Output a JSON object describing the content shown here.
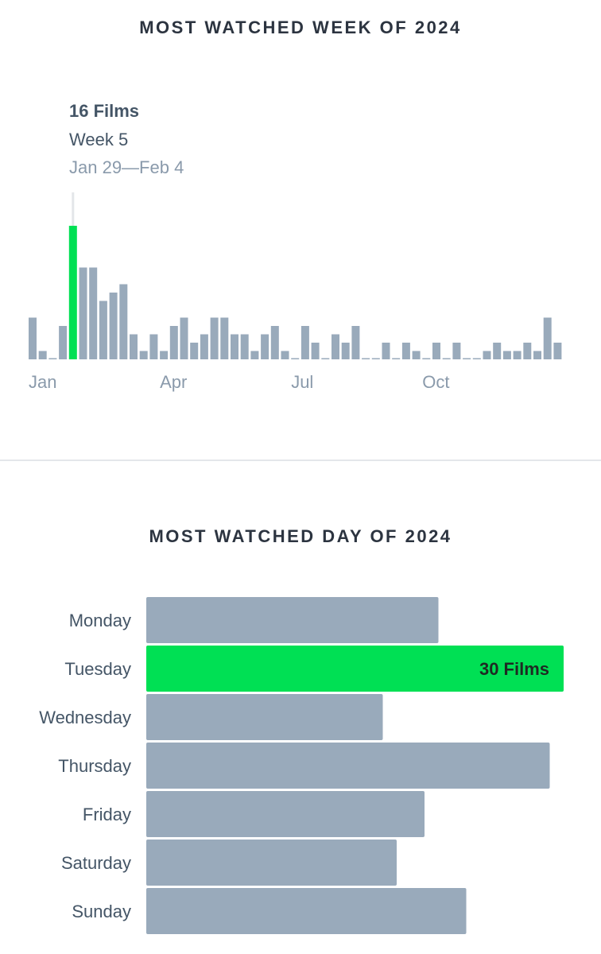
{
  "colors": {
    "bar": "#99aabb",
    "highlight": "#00e054",
    "title": "#2c3440",
    "label": "#445566",
    "muted": "#8a9aab"
  },
  "week_section": {
    "title": "MOST WATCHED WEEK OF 2024",
    "tooltip": {
      "count": "16 Films",
      "week": "Week 5",
      "range": "Jan 29—Feb 4"
    }
  },
  "day_section": {
    "title": "MOST WATCHED DAY OF 2024",
    "highlight_label": "30 Films"
  },
  "chart_data": [
    {
      "type": "bar",
      "title": "MOST WATCHED WEEK OF 2024",
      "x": [
        1,
        2,
        3,
        4,
        5,
        6,
        7,
        8,
        9,
        10,
        11,
        12,
        13,
        14,
        15,
        16,
        17,
        18,
        19,
        20,
        21,
        22,
        23,
        24,
        25,
        26,
        27,
        28,
        29,
        30,
        31,
        32,
        33,
        34,
        35,
        36,
        37,
        38,
        39,
        40,
        41,
        42,
        43,
        44,
        45,
        46,
        47,
        48,
        49,
        50,
        51,
        52,
        53
      ],
      "values": [
        5,
        1,
        0,
        4,
        16,
        11,
        11,
        7,
        8,
        9,
        3,
        1,
        3,
        1,
        4,
        5,
        2,
        3,
        5,
        5,
        3,
        3,
        1,
        3,
        4,
        1,
        0,
        4,
        2,
        0,
        3,
        2,
        4,
        0,
        0,
        2,
        0,
        2,
        1,
        0,
        2,
        0,
        2,
        0,
        0,
        1,
        2,
        1,
        1,
        2,
        1,
        5,
        2
      ],
      "highlight_index": 4,
      "x_tick_labels": [
        {
          "label": "Jan",
          "week": 1
        },
        {
          "label": "Apr",
          "week": 14
        },
        {
          "label": "Jul",
          "week": 27
        },
        {
          "label": "Oct",
          "week": 40
        }
      ],
      "ylim": [
        0,
        20
      ],
      "grid": false
    },
    {
      "type": "bar",
      "orientation": "horizontal",
      "title": "MOST WATCHED DAY OF 2024",
      "categories": [
        "Monday",
        "Tuesday",
        "Wednesday",
        "Thursday",
        "Friday",
        "Saturday",
        "Sunday"
      ],
      "values": [
        21,
        30,
        17,
        29,
        20,
        18,
        23
      ],
      "highlight_index": 1,
      "highlight_label": "30 Films",
      "xlim": [
        0,
        30
      ],
      "grid": false
    }
  ]
}
